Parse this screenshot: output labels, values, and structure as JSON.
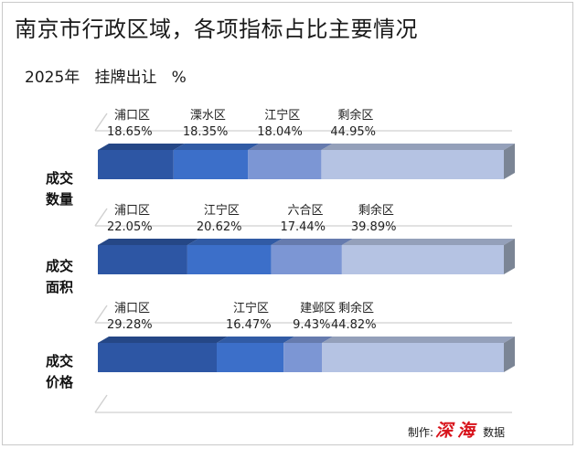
{
  "title": "南京市行政区域，各项指标占比主要情况",
  "subtitle": "2025年   挂牌出让   %",
  "credit": {
    "prefix": "制作:",
    "brand": "深海",
    "suffix": "数据"
  },
  "colors": {
    "segment_1": "#2d56a4",
    "segment_2": "#3c6fc9",
    "segment_3": "#7c96d4",
    "segment_4": "#b5c3e3",
    "axis_line": "#d0d0d0",
    "label_text": "#222222"
  },
  "chart_data": {
    "type": "bar",
    "stacked": true,
    "orientation": "horizontal",
    "unit": "%",
    "rows": [
      {
        "label_lines": [
          "成交",
          "数量"
        ],
        "segments": [
          {
            "name": "浦口区",
            "value": 18.65,
            "text": "18.65%"
          },
          {
            "name": "溧水区",
            "value": 18.35,
            "text": "18.35%"
          },
          {
            "name": "江宁区",
            "value": 18.04,
            "text": "18.04%"
          },
          {
            "name": "剩余区",
            "value": 44.95,
            "text": "44.95%"
          }
        ]
      },
      {
        "label_lines": [
          "成交",
          "面积"
        ],
        "segments": [
          {
            "name": "浦口区",
            "value": 22.05,
            "text": "22.05%"
          },
          {
            "name": "江宁区",
            "value": 20.62,
            "text": "20.62%"
          },
          {
            "name": "六合区",
            "value": 17.44,
            "text": "17.44%"
          },
          {
            "name": "剩余区",
            "value": 39.89,
            "text": "39.89%"
          }
        ]
      },
      {
        "label_lines": [
          "成交",
          "价格"
        ],
        "segments": [
          {
            "name": "浦口区",
            "value": 29.28,
            "text": "29.28%"
          },
          {
            "name": "江宁区",
            "value": 16.47,
            "text": "16.47%"
          },
          {
            "name": "建邺区",
            "value": 9.43,
            "text": "9.43%"
          },
          {
            "name": "剩余区",
            "value": 44.82,
            "text": "44.82%"
          }
        ]
      }
    ]
  }
}
